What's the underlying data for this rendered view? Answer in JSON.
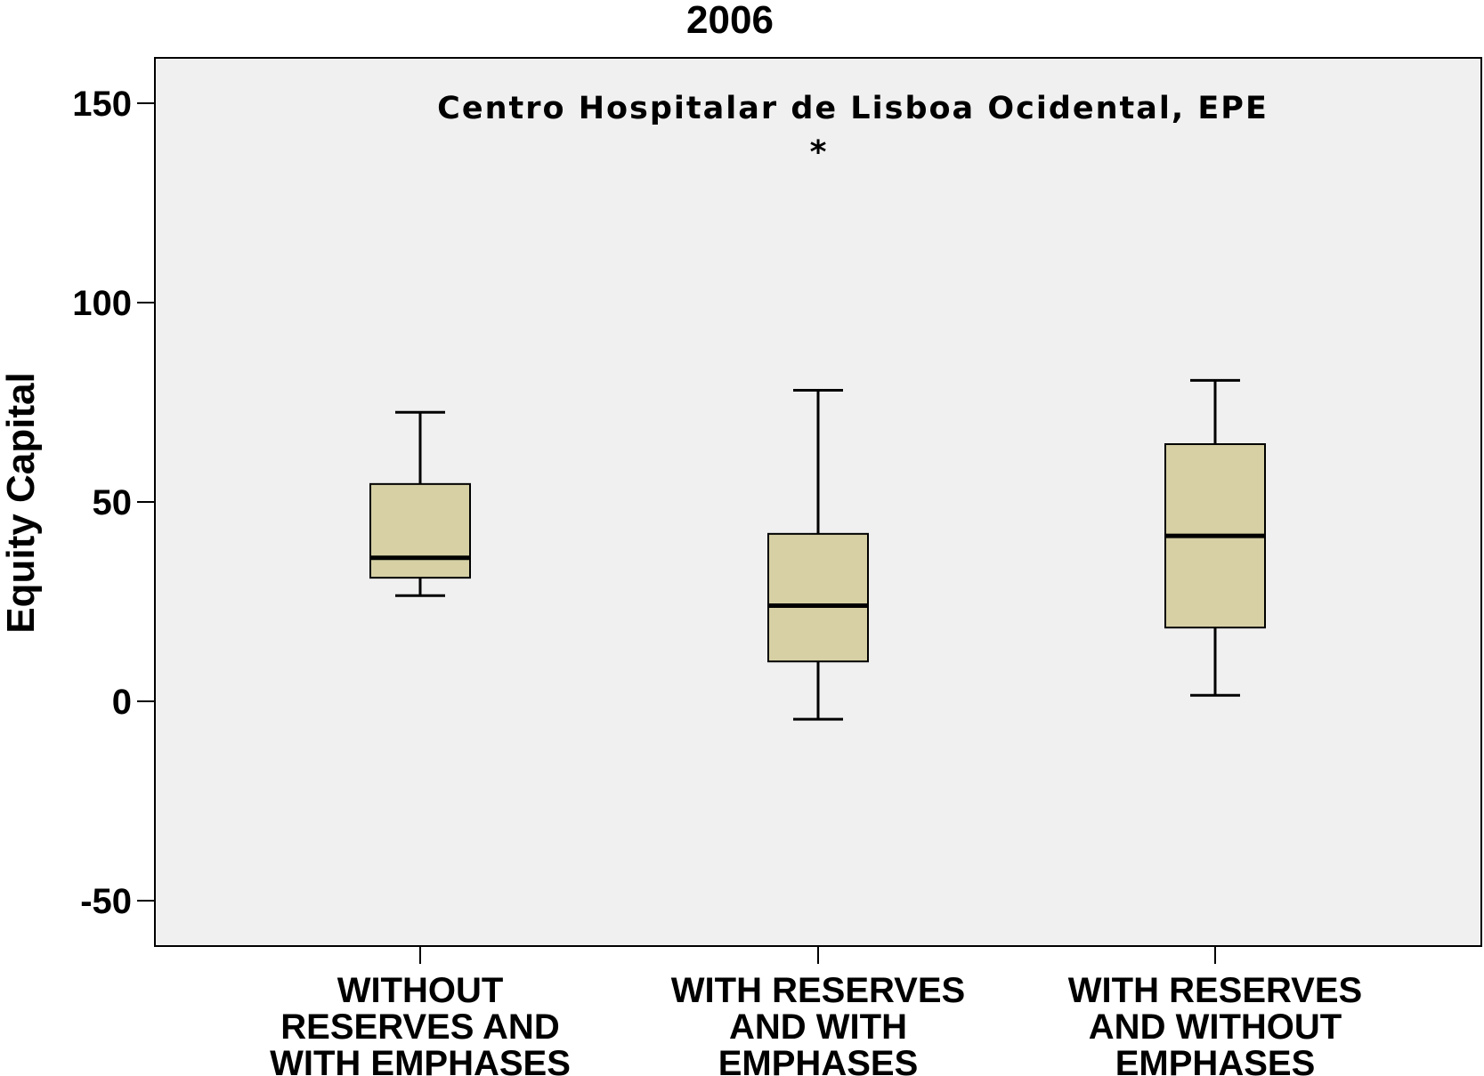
{
  "chart_data": {
    "type": "boxplot",
    "title": "2006",
    "xlabel": "",
    "ylabel": "Equity Capital",
    "ylim": [
      -60,
      160
    ],
    "yticks": [
      -50,
      0,
      50,
      100,
      150
    ],
    "grid": false,
    "legend": "none",
    "box_color": "#d6d0a4",
    "plot_background": "#f0f0f0",
    "categories": [
      [
        "WITHOUT",
        "RESERVES AND",
        "WITH EMPHASES"
      ],
      [
        "WITH RESERVES",
        "AND WITH",
        "EMPHASES"
      ],
      [
        "WITH RESERVES",
        "AND WITHOUT",
        "EMPHASES"
      ]
    ],
    "boxes": [
      {
        "whisker_low": 26.5,
        "q1": 31,
        "median": 36,
        "q3": 54.5,
        "whisker_high": 72.5
      },
      {
        "whisker_low": -4.5,
        "q1": 10,
        "median": 24,
        "q3": 42,
        "whisker_high": 78
      },
      {
        "whisker_low": 1.5,
        "q1": 18.5,
        "median": 41.5,
        "q3": 64.5,
        "whisker_high": 80.5
      }
    ],
    "outliers": [
      {
        "category_index": 1,
        "value": 140,
        "marker": "*",
        "label": "Centro Hospitalar de Lisboa Ocidental, EPE"
      }
    ]
  }
}
